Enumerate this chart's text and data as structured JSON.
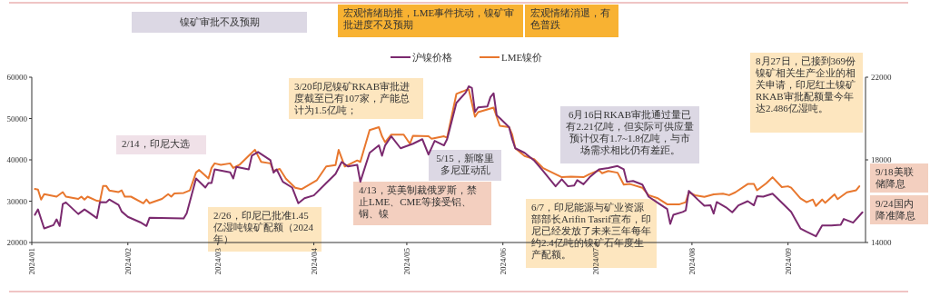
{
  "chart_data": {
    "type": "line",
    "xlim": [
      "2024-01-01",
      "2024-09-26"
    ],
    "xticks": [
      {
        "value": "2024-01-01",
        "label": "2024/01"
      },
      {
        "value": "2024-02-01",
        "label": "2024/02"
      },
      {
        "value": "2024-03-01",
        "label": "2024/03"
      },
      {
        "value": "2024-04-01",
        "label": "2024/04"
      },
      {
        "value": "2024-05-01",
        "label": "2024/05"
      },
      {
        "value": "2024-06-01",
        "label": "2024/06"
      },
      {
        "value": "2024-07-01",
        "label": "2024/07"
      },
      {
        "value": "2024-08-01",
        "label": "2024/08"
      },
      {
        "value": "2024-09-01",
        "label": "2024/09"
      }
    ],
    "ylim": [
      20000,
      60000
    ],
    "yticks": [
      20000,
      30000,
      40000,
      50000,
      60000
    ],
    "y2lim": [
      14000,
      22000
    ],
    "y2ticks": [
      14000,
      18000,
      22000
    ],
    "legend": "top",
    "series": [
      {
        "name": "沪镍价格",
        "color": "#7b2a6f",
        "x": [
          "2024-01-02",
          "2024-01-03",
          "2024-01-05",
          "2024-01-08",
          "2024-01-09",
          "2024-01-10",
          "2024-01-11",
          "2024-01-12",
          "2024-01-16",
          "2024-01-18",
          "2024-01-19",
          "2024-01-22",
          "2024-01-23",
          "2024-01-25",
          "2024-01-26",
          "2024-01-29",
          "2024-01-30",
          "2024-02-01",
          "2024-02-05",
          "2024-02-07",
          "2024-02-08",
          "2024-02-19",
          "2024-02-20",
          "2024-02-23",
          "2024-02-26",
          "2024-02-27",
          "2024-02-28",
          "2024-02-29",
          "2024-03-05",
          "2024-03-06",
          "2024-03-07",
          "2024-03-11",
          "2024-03-12",
          "2024-03-14",
          "2024-03-18",
          "2024-03-19",
          "2024-03-20",
          "2024-03-22",
          "2024-03-25",
          "2024-03-27",
          "2024-03-29",
          "2024-04-01",
          "2024-04-05",
          "2024-04-08",
          "2024-04-10",
          "2024-04-12",
          "2024-04-15",
          "2024-04-16",
          "2024-04-19",
          "2024-04-22",
          "2024-04-23",
          "2024-04-24",
          "2024-04-26",
          "2024-04-29",
          "2024-05-03",
          "2024-05-06",
          "2024-05-08",
          "2024-05-10",
          "2024-05-13",
          "2024-05-14",
          "2024-05-15",
          "2024-05-17",
          "2024-05-20",
          "2024-05-21",
          "2024-05-22",
          "2024-05-23",
          "2024-05-24",
          "2024-05-27",
          "2024-05-28",
          "2024-05-29",
          "2024-05-30",
          "2024-05-31",
          "2024-06-03",
          "2024-06-04",
          "2024-06-05",
          "2024-06-08",
          "2024-06-11",
          "2024-06-14",
          "2024-06-18",
          "2024-06-20",
          "2024-06-22",
          "2024-06-24",
          "2024-06-25",
          "2024-06-27",
          "2024-06-29",
          "2024-07-02",
          "2024-07-05",
          "2024-07-08",
          "2024-07-10",
          "2024-07-11",
          "2024-07-13",
          "2024-07-16",
          "2024-07-18",
          "2024-07-21",
          "2024-07-24",
          "2024-07-25",
          "2024-07-26",
          "2024-07-29",
          "2024-07-30",
          "2024-07-31",
          "2024-08-03",
          "2024-08-05",
          "2024-08-07",
          "2024-08-08",
          "2024-08-09",
          "2024-08-12",
          "2024-08-14",
          "2024-08-16",
          "2024-08-19",
          "2024-08-21",
          "2024-08-22",
          "2024-08-24",
          "2024-08-27",
          "2024-08-28",
          "2024-08-31",
          "2024-09-02",
          "2024-09-05",
          "2024-09-07",
          "2024-09-10",
          "2024-09-12",
          "2024-09-15",
          "2024-09-18",
          "2024-09-19",
          "2024-09-22",
          "2024-09-25"
        ],
        "values": [
          26700,
          28000,
          23400,
          24200,
          25600,
          24000,
          29300,
          29700,
          26900,
          28000,
          27500,
          25900,
          29800,
          29700,
          30400,
          29100,
          27500,
          26200,
          24900,
          24000,
          26000,
          25800,
          27100,
          35500,
          33300,
          34400,
          34400,
          37700,
          37000,
          35500,
          38300,
          37700,
          41000,
          41900,
          39900,
          36900,
          37700,
          34700,
          33300,
          29500,
          30700,
          31400,
          34400,
          36600,
          39500,
          38400,
          38800,
          34700,
          41700,
          43500,
          41000,
          43500,
          45700,
          42800,
          43900,
          45000,
          41300,
          44600,
          43500,
          45000,
          47900,
          53800,
          56300,
          57800,
          57400,
          51600,
          52700,
          52900,
          55200,
          56100,
          50800,
          50100,
          47900,
          45000,
          42800,
          41700,
          39900,
          37300,
          33600,
          35300,
          33600,
          33800,
          35100,
          34100,
          35800,
          37700,
          38000,
          38500,
          37700,
          34700,
          34900,
          34000,
          31100,
          29600,
          28100,
          24500,
          26700,
          27400,
          27800,
          32500,
          30300,
          28900,
          29000,
          27000,
          29800,
          28500,
          27300,
          29000,
          30000,
          29000,
          31200,
          31100,
          31800,
          31100,
          28900,
          27400,
          23400,
          22600,
          21500,
          24100,
          24100,
          24300,
          25700,
          24800,
          27300
        ]
      },
      {
        "name": "LME镍价",
        "color": "#e8772e",
        "axis": "y2",
        "x": [
          "2024-01-02",
          "2024-01-03",
          "2024-01-04",
          "2024-01-05",
          "2024-01-09",
          "2024-01-11",
          "2024-01-12",
          "2024-01-16",
          "2024-01-17",
          "2024-01-18",
          "2024-01-19",
          "2024-01-22",
          "2024-01-23",
          "2024-01-24",
          "2024-01-25",
          "2024-01-26",
          "2024-01-29",
          "2024-01-30",
          "2024-01-31",
          "2024-02-02",
          "2024-02-06",
          "2024-02-07",
          "2024-02-08",
          "2024-02-12",
          "2024-02-14",
          "2024-02-15",
          "2024-02-16",
          "2024-02-19",
          "2024-02-21",
          "2024-02-23",
          "2024-02-24",
          "2024-02-27",
          "2024-02-28",
          "2024-02-29",
          "2024-03-02",
          "2024-03-05",
          "2024-03-06",
          "2024-03-08",
          "2024-03-11",
          "2024-03-13",
          "2024-03-15",
          "2024-03-18",
          "2024-03-19",
          "2024-03-21",
          "2024-03-23",
          "2024-03-26",
          "2024-03-28",
          "2024-04-02",
          "2024-04-05",
          "2024-04-08",
          "2024-04-09",
          "2024-04-11",
          "2024-04-15",
          "2024-04-16",
          "2024-04-19",
          "2024-04-22",
          "2024-04-23",
          "2024-04-24",
          "2024-04-26",
          "2024-04-30",
          "2024-05-02",
          "2024-05-03",
          "2024-05-08",
          "2024-05-09",
          "2024-05-13",
          "2024-05-14",
          "2024-05-17",
          "2024-05-20",
          "2024-05-21",
          "2024-05-23",
          "2024-05-24",
          "2024-05-29",
          "2024-05-31",
          "2024-06-03",
          "2024-06-04",
          "2024-06-05",
          "2024-06-08",
          "2024-06-11",
          "2024-06-14",
          "2024-06-17",
          "2024-06-20",
          "2024-06-23",
          "2024-06-27",
          "2024-06-29",
          "2024-07-02",
          "2024-07-03",
          "2024-07-05",
          "2024-07-08",
          "2024-07-10",
          "2024-07-12",
          "2024-07-16",
          "2024-07-18",
          "2024-07-21",
          "2024-07-24",
          "2024-07-28",
          "2024-07-30",
          "2024-07-31",
          "2024-08-02",
          "2024-08-05",
          "2024-08-08",
          "2024-08-11",
          "2024-08-13",
          "2024-08-15",
          "2024-08-19",
          "2024-08-21",
          "2024-08-22",
          "2024-08-25",
          "2024-08-27",
          "2024-08-30",
          "2024-09-01",
          "2024-09-02",
          "2024-09-05",
          "2024-09-07",
          "2024-09-09",
          "2024-09-10",
          "2024-09-12",
          "2024-09-13",
          "2024-09-16",
          "2024-09-17",
          "2024-09-20",
          "2024-09-23",
          "2024-09-24"
        ],
        "values": [
          16590,
          16560,
          16080,
          16340,
          16220,
          16440,
          16220,
          16110,
          16220,
          16080,
          16220,
          16020,
          16000,
          16740,
          16740,
          16520,
          16440,
          16520,
          16220,
          16220,
          15900,
          16080,
          15900,
          16110,
          16340,
          16220,
          16370,
          16400,
          16520,
          17390,
          17510,
          17100,
          17610,
          17830,
          17760,
          17830,
          17610,
          17760,
          18200,
          18490,
          17900,
          17830,
          17460,
          17560,
          17090,
          16650,
          16580,
          17020,
          17680,
          17750,
          18480,
          17680,
          17970,
          17900,
          19440,
          19580,
          19140,
          18850,
          19220,
          19220,
          18780,
          19170,
          19140,
          19020,
          19140,
          19070,
          21190,
          21370,
          21410,
          20090,
          20310,
          20530,
          19650,
          19580,
          19220,
          18560,
          18190,
          18040,
          17600,
          17380,
          17160,
          17190,
          17160,
          17310,
          17500,
          17350,
          17460,
          17380,
          16800,
          16830,
          16650,
          16290,
          16140,
          15850,
          15850,
          15950,
          16430,
          16290,
          16210,
          16330,
          16360,
          16290,
          16430,
          16830,
          16830,
          16530,
          16870,
          17160,
          16680,
          16720,
          16650,
          16140,
          15950,
          16080,
          15770,
          16080,
          15920,
          16330,
          16100,
          16430,
          16530,
          16720
        ]
      }
    ],
    "annotations": [
      "镍矿审批不及预期",
      "宏观情绪助推，LME事件扰动，镍矿审批进度不及预期",
      "宏观情绪消退，有色普跌",
      "2/14，印尼大选",
      "2/26，印尼已批准1.45亿湿吨镍矿配额（2024年）",
      "3/20印尼镍矿RKAB审批进度截至已有107家，产能总计为1.5亿吨；",
      "4/13，英美制裁俄罗斯，禁止LME、CME等接受铝、铜、镍",
      "5/15，新喀里多尼亚动乱",
      "6月16日RKAB审批通过量已有2.21亿吨，但实际可供应量预计仅有1.7~1.8亿吨，与市场需求相比仍有差距。",
      "6/7，印尼能源与矿业资源部部长Arifin Tasrif宣布，印尼已经发放了未来三年每年约2.4亿吨的镍矿石年度生产配额。",
      "8月27日，已接到369份镍矿相关生产企业的相关申请，印尼红土镍矿RKAB审批配额量今年达2.486亿湿吨。",
      "9/18美联储降息",
      "9/24国内降准降息"
    ]
  }
}
